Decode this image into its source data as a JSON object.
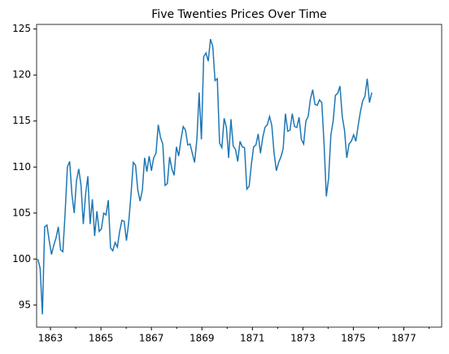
{
  "chart_data": {
    "type": "line",
    "title": "Five Twenties Prices Over Time",
    "x": [
      1862.5,
      1862.59,
      1862.68,
      1862.77,
      1862.86,
      1862.95,
      1863.04,
      1863.13,
      1863.22,
      1863.31,
      1863.4,
      1863.49,
      1863.58,
      1863.67,
      1863.76,
      1863.85,
      1863.94,
      1864.03,
      1864.12,
      1864.21,
      1864.3,
      1864.39,
      1864.48,
      1864.57,
      1864.66,
      1864.75,
      1864.84,
      1864.93,
      1865.02,
      1865.11,
      1865.2,
      1865.29,
      1865.38,
      1865.47,
      1865.56,
      1865.65,
      1865.74,
      1865.83,
      1865.92,
      1866.01,
      1866.1,
      1866.19,
      1866.28,
      1866.37,
      1866.46,
      1866.55,
      1866.64,
      1866.73,
      1866.82,
      1866.91,
      1867,
      1867.09,
      1867.18,
      1867.27,
      1867.36,
      1867.45,
      1867.54,
      1867.63,
      1867.72,
      1867.81,
      1867.9,
      1867.99,
      1868.08,
      1868.17,
      1868.26,
      1868.35,
      1868.44,
      1868.53,
      1868.62,
      1868.71,
      1868.8,
      1868.89,
      1868.98,
      1869.07,
      1869.16,
      1869.25,
      1869.34,
      1869.43,
      1869.52,
      1869.61,
      1869.7,
      1869.79,
      1869.88,
      1869.97,
      1870.06,
      1870.15,
      1870.24,
      1870.33,
      1870.42,
      1870.51,
      1870.6,
      1870.69,
      1870.78,
      1870.87,
      1870.96,
      1871.05,
      1871.14,
      1871.23,
      1871.32,
      1871.41,
      1871.5,
      1871.59,
      1871.68,
      1871.77,
      1871.86,
      1871.95,
      1872.04,
      1872.13,
      1872.22,
      1872.31,
      1872.4,
      1872.49,
      1872.58,
      1872.67,
      1872.76,
      1872.85,
      1872.94,
      1873.03,
      1873.12,
      1873.21,
      1873.3,
      1873.39,
      1873.48,
      1873.57,
      1873.66,
      1873.75,
      1873.84,
      1873.93,
      1874.02,
      1874.11,
      1874.2,
      1874.29,
      1874.38,
      1874.47,
      1874.56,
      1874.65,
      1874.74,
      1874.83,
      1874.92,
      1875.01,
      1875.1,
      1875.19,
      1875.28,
      1875.37,
      1875.46,
      1875.55,
      1875.64,
      1875.73
    ],
    "series": [
      {
        "color": "#1f77b4",
        "values": [
          100,
          99,
          94,
          103.5,
          103.7,
          102,
          100.5,
          101.5,
          102.3,
          103.5,
          101,
          100.8,
          105,
          110,
          110.6,
          107,
          105,
          108.5,
          109.8,
          108,
          103.8,
          107,
          109,
          103.8,
          106.5,
          102.5,
          105.2,
          103,
          103.3,
          105,
          104.8,
          106.4,
          101.2,
          100.9,
          101.8,
          101.3,
          103,
          104.2,
          104.1,
          102,
          104,
          107,
          110.5,
          110.2,
          107.5,
          106.3,
          107.5,
          111,
          109.5,
          111.2,
          109.6,
          111,
          111.5,
          114.6,
          113.2,
          112.5,
          108,
          108.2,
          111.1,
          109.8,
          109.1,
          112.2,
          111.2,
          113,
          114.4,
          114,
          112.4,
          112.5,
          111.5,
          110.5,
          113,
          118.1,
          113,
          122,
          122.4,
          121.5,
          123.9,
          123.1,
          119.4,
          119.6,
          112.6,
          112.1,
          115.3,
          114.3,
          111,
          115.2,
          112.3,
          111.9,
          110.6,
          112.8,
          112.2,
          112.1,
          107.6,
          107.9,
          110.3,
          112.2,
          112.4,
          113.6,
          111.5,
          113.2,
          114.3,
          114.6,
          115.5,
          114.5,
          111.5,
          109.6,
          110.5,
          111.1,
          112,
          115.8,
          113.9,
          114,
          115.8,
          114.4,
          114.3,
          115.4,
          113,
          112.5,
          115,
          115.5,
          117.4,
          118.4,
          116.8,
          116.7,
          117.3,
          117,
          112.5,
          106.8,
          108.8,
          113.5,
          115,
          117.8,
          118,
          118.8,
          115.5,
          114,
          111,
          112.5,
          112.8,
          113.5,
          112.8,
          114.5,
          116,
          117.2,
          117.7,
          119.6,
          117,
          118.1
        ]
      }
    ],
    "xlim": [
      1862.45,
      1878.5
    ],
    "xticks": [
      1863,
      1865,
      1867,
      1869,
      1871,
      1873,
      1875,
      1877
    ],
    "xminor_ticks": [
      1864,
      1866,
      1868,
      1870,
      1872,
      1874,
      1876,
      1878
    ],
    "ylim": [
      92.6,
      125.5
    ],
    "yticks": [
      95,
      100,
      105,
      110,
      115,
      120,
      125
    ],
    "grid": false
  }
}
